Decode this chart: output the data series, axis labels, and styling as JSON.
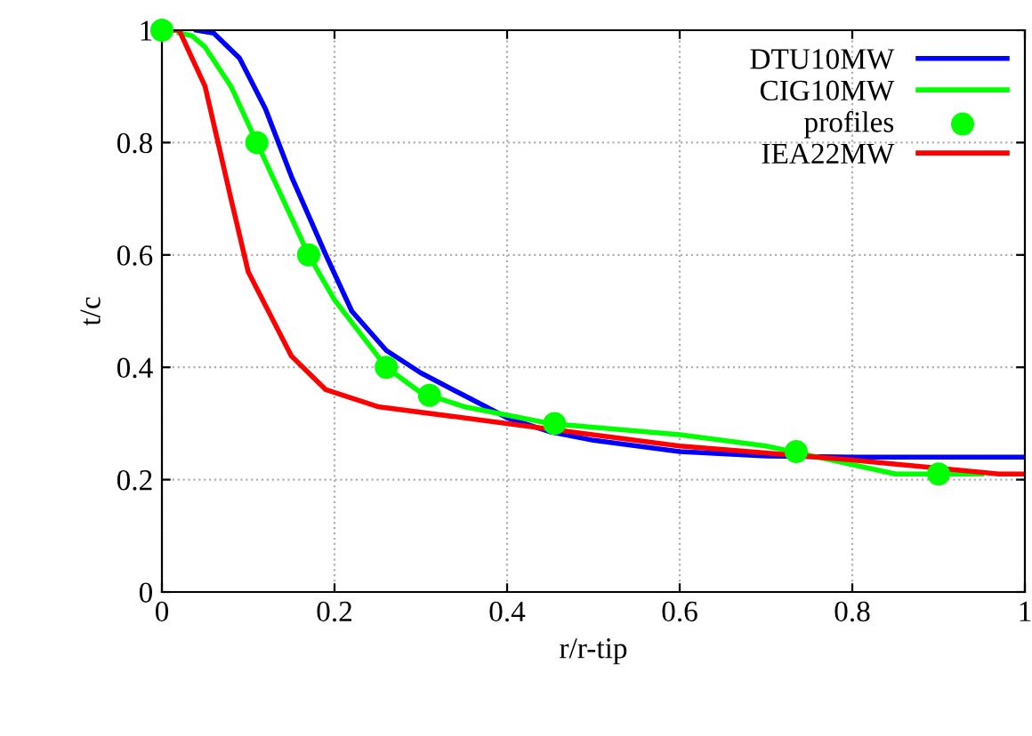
{
  "chart_data": {
    "type": "line",
    "xlabel": "r/r-tip",
    "ylabel": "t/c",
    "xlim": [
      0,
      1
    ],
    "ylim": [
      0,
      1
    ],
    "xticks": [
      0,
      0.2,
      0.4,
      0.6,
      0.8,
      1
    ],
    "yticks": [
      0,
      0.2,
      0.4,
      0.6,
      0.8,
      1
    ],
    "grid": true,
    "legend": "top right",
    "marker": "none",
    "line_style": "solid",
    "series": [
      {
        "name": "DTU10MW",
        "color": "#0000ff",
        "x": [
          0.04,
          0.06,
          0.09,
          0.12,
          0.15,
          0.19,
          0.22,
          0.26,
          0.3,
          0.35,
          0.4,
          0.45,
          0.5,
          0.6,
          0.7,
          0.8,
          1.0
        ],
        "values": [
          1,
          0.995,
          0.95,
          0.86,
          0.74,
          0.6,
          0.5,
          0.43,
          0.39,
          0.35,
          0.31,
          0.285,
          0.27,
          0.25,
          0.242,
          0.24,
          0.24
        ]
      },
      {
        "name": "CIG10MW",
        "color": "#00ff00",
        "x": [
          0.02,
          0.035,
          0.05,
          0.08,
          0.11,
          0.14,
          0.17,
          0.2,
          0.24,
          0.26,
          0.3,
          0.35,
          0.45,
          0.6,
          0.7,
          0.76,
          0.85,
          0.95
        ],
        "values": [
          0.995,
          0.99,
          0.97,
          0.9,
          0.8,
          0.7,
          0.6,
          0.52,
          0.44,
          0.4,
          0.355,
          0.33,
          0.3,
          0.28,
          0.26,
          0.24,
          0.21,
          0.21
        ]
      },
      {
        "name": "profiles",
        "type": "scatter",
        "marker": "circle",
        "color": "#00ff00",
        "x": [
          0,
          0.11,
          0.17,
          0.26,
          0.31,
          0.455,
          0.735,
          0.9
        ],
        "values": [
          1,
          0.8,
          0.6,
          0.4,
          0.35,
          0.3,
          0.25,
          0.21
        ]
      },
      {
        "name": "IEA22MW",
        "color": "#ff0000",
        "x": [
          0,
          0.02,
          0.05,
          0.08,
          0.1,
          0.15,
          0.19,
          0.25,
          0.4,
          0.6,
          0.8,
          0.97,
          1.0
        ],
        "values": [
          1,
          1,
          0.9,
          0.7,
          0.57,
          0.42,
          0.36,
          0.33,
          0.3,
          0.26,
          0.235,
          0.21,
          0.21
        ]
      }
    ]
  }
}
